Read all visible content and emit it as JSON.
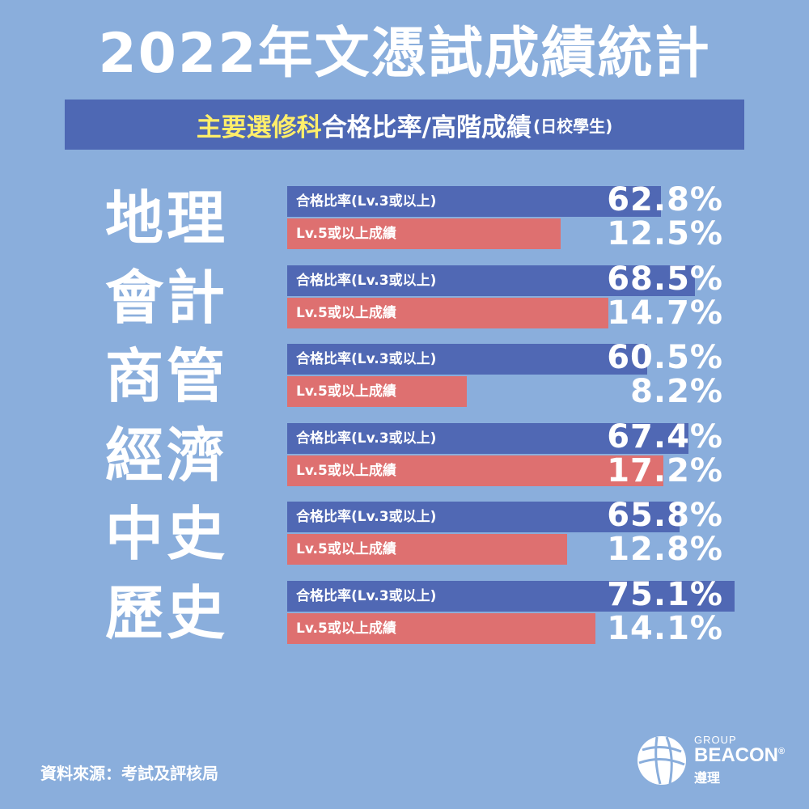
{
  "title": "2022年文憑試成績統計",
  "subtitle": {
    "highlight": "主要選修科",
    "main": "合格比率/高階成績",
    "small": "(日校學生)"
  },
  "chart_data": {
    "type": "bar",
    "title": "2022年文憑試成績統計",
    "subtitle": "主要選修科合格比率/高階成績(日校學生)",
    "categories": [
      "地理",
      "會計",
      "商管",
      "經濟",
      "中史",
      "歷史"
    ],
    "series": [
      {
        "name": "合格比率(Lv.3或以上)",
        "values": [
          62.8,
          68.5,
          60.5,
          67.4,
          65.8,
          75.1
        ],
        "color": "#5068b4"
      },
      {
        "name": "Lv.5或以上成績",
        "values": [
          12.5,
          14.7,
          8.2,
          17.2,
          12.8,
          14.1
        ],
        "color": "#de7070"
      }
    ],
    "value_labels": {
      "pass": [
        "62.8%",
        "68.5%",
        "60.5%",
        "67.4%",
        "65.8%",
        "75.1%"
      ],
      "high": [
        "12.5%",
        "14.7%",
        "8.2%",
        "17.2%",
        "12.8%",
        "14.1%"
      ]
    },
    "pass_scale_max": 75.1,
    "high_scale_max": 17.2,
    "orientation": "horizontal",
    "grid": false
  },
  "source": "資料來源：考試及評核局",
  "logo": {
    "icon": "beacon-globe-icon",
    "group": "GROUP",
    "brand": "BEACON",
    "reg": "®",
    "cn": "遵理"
  },
  "colors": {
    "background": "#8aaedc",
    "band": "#4e68b4",
    "highlight": "#ffee6a"
  }
}
